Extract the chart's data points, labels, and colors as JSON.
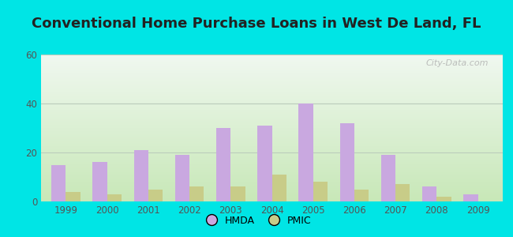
{
  "title": "Conventional Home Purchase Loans in West De Land, FL",
  "years": [
    1999,
    2000,
    2001,
    2002,
    2003,
    2004,
    2005,
    2006,
    2007,
    2008,
    2009
  ],
  "hmda": [
    15,
    16,
    21,
    19,
    30,
    31,
    40,
    32,
    19,
    6,
    3
  ],
  "pmic": [
    4,
    3,
    5,
    6,
    6,
    11,
    8,
    5,
    7,
    2,
    0
  ],
  "hmda_color": "#c9a8e0",
  "pmic_color": "#c8cc88",
  "ylim": [
    0,
    60
  ],
  "yticks": [
    0,
    20,
    40,
    60
  ],
  "background_outer": "#00e5e5",
  "bg_top_left": "#e8f4f0",
  "bg_top_right": "#d8eee8",
  "bg_bottom_left": "#c8e8c8",
  "bg_bottom_right": "#b8e0b8",
  "grid_color": "#bbccbb",
  "title_fontsize": 13,
  "tick_color": "#555555",
  "watermark": "City-Data.com",
  "legend_hmda": "HMDA",
  "legend_pmic": "PMIC"
}
